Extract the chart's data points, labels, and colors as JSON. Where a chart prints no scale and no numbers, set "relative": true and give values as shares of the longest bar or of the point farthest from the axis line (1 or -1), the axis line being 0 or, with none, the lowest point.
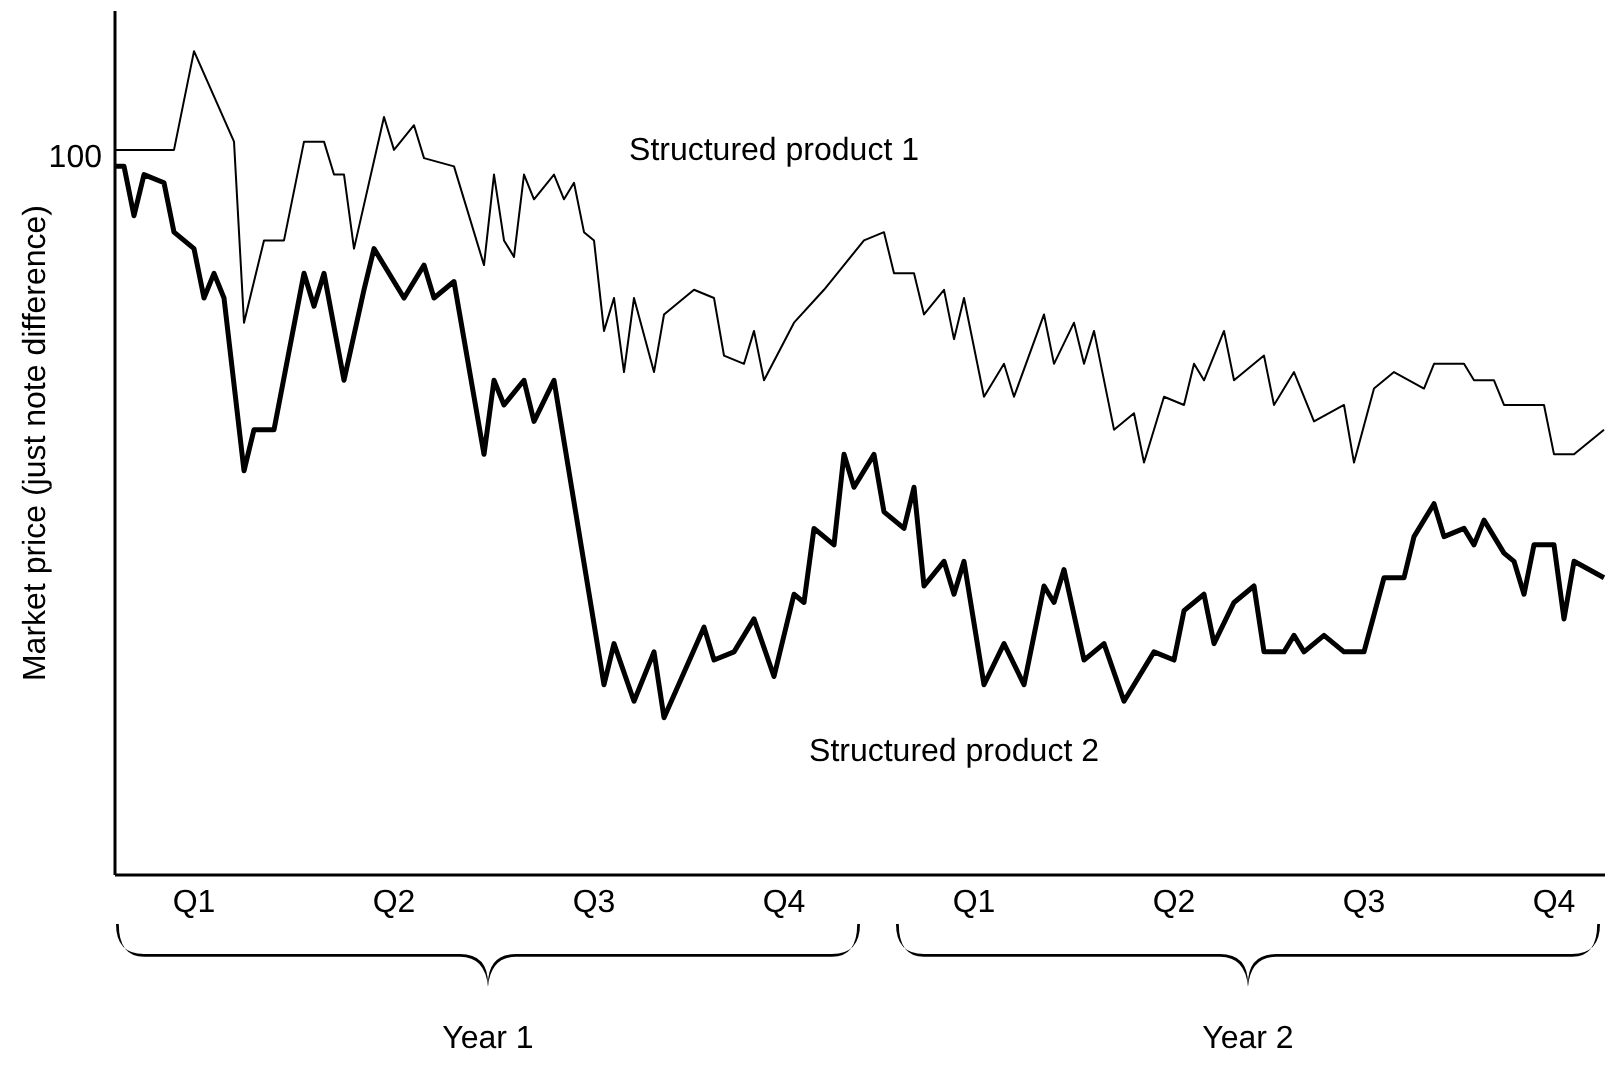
{
  "chart_data": {
    "type": "line",
    "relative": true,
    "ylabel": "Market price (just note difference)",
    "categories": [
      null,
      null,
      null,
      null,
      null,
      null,
      null,
      null,
      null,
      null,
      null,
      null,
      null,
      null,
      null,
      null,
      null,
      null,
      null,
      null,
      null,
      null,
      null,
      null,
      null,
      null,
      null,
      null,
      null,
      null,
      null,
      null,
      null,
      null,
      null,
      null,
      null,
      null,
      null,
      null,
      null,
      null,
      null,
      null,
      null,
      null,
      null,
      null,
      null,
      null,
      null,
      null,
      null,
      null,
      null,
      null,
      null,
      null,
      null,
      null,
      null,
      null,
      null,
      null,
      null,
      null,
      null,
      null,
      null,
      null,
      null,
      null,
      null,
      null,
      null,
      null,
      null,
      null,
      null,
      null,
      null,
      null,
      null,
      null,
      null,
      null,
      null,
      null,
      null,
      null,
      null,
      null,
      null,
      null,
      null,
      null,
      null,
      null,
      null,
      null,
      null,
      null,
      null,
      null,
      null,
      null,
      null,
      null,
      null,
      null,
      null,
      null,
      null,
      null,
      null,
      null,
      null,
      null,
      null,
      null,
      null,
      null,
      null,
      null,
      null,
      null,
      null,
      null,
      null,
      null,
      null,
      null,
      null,
      null,
      null,
      null,
      null,
      null,
      null,
      null,
      null,
      null,
      null,
      null,
      null,
      null,
      null,
      null,
      null,
      null
    ],
    "annotations": [
      "100",
      "Q1",
      "Q2",
      "Q3",
      "Q4",
      "Q1",
      "Q2",
      "Q3",
      "Q4",
      "Year 1",
      "Year 2"
    ],
    "series": [
      {
        "name": "Structured product 1",
        "color": "#000000",
        "values": [
          0.88,
          null,
          null,
          null,
          null,
          null,
          0.88,
          null,
          1.0,
          null,
          null,
          null,
          0.89,
          0.67,
          null,
          0.77,
          null,
          0.77,
          null,
          0.89,
          null,
          0.89,
          0.85,
          0.85,
          0.76,
          null,
          null,
          0.92,
          0.88,
          null,
          0.91,
          0.87,
          null,
          null,
          0.86,
          null,
          null,
          0.74,
          0.85,
          0.77,
          0.75,
          0.85,
          0.82,
          null,
          0.85,
          0.82,
          0.84,
          0.78,
          0.77,
          0.66,
          0.7,
          0.61,
          0.7,
          null,
          0.61,
          0.68,
          null,
          null,
          0.71,
          null,
          0.7,
          0.63,
          null,
          0.62,
          0.66,
          0.6,
          null,
          null,
          0.67,
          null,
          null,
          0.71,
          null,
          null,
          null,
          0.77,
          null,
          0.78,
          0.73,
          null,
          0.73,
          0.68,
          null,
          0.71,
          0.65,
          0.7,
          null,
          0.58,
          null,
          0.62,
          0.58,
          null,
          null,
          0.68,
          0.62,
          null,
          0.67,
          0.62,
          0.66,
          null,
          0.54,
          null,
          0.56,
          0.5,
          null,
          0.58,
          null,
          0.57,
          0.62,
          0.6,
          null,
          0.66,
          0.6,
          null,
          null,
          0.63,
          0.57,
          null,
          0.61,
          null,
          0.55,
          null,
          null,
          0.57,
          0.5,
          null,
          0.59,
          null,
          0.61,
          null,
          null,
          0.59,
          0.62,
          null,
          null,
          0.62,
          0.6,
          null,
          0.6,
          0.57,
          null,
          null,
          null,
          0.57,
          0.51,
          null,
          0.51,
          null,
          null,
          0.54
        ]
      },
      {
        "name": "Structured product 2",
        "color": "#000000",
        "values": [
          0.86,
          0.86,
          0.8,
          0.85,
          null,
          0.84,
          0.78,
          null,
          0.76,
          0.7,
          0.73,
          0.7,
          null,
          0.49,
          0.54,
          null,
          0.54,
          null,
          null,
          0.73,
          0.69,
          0.73,
          null,
          0.6,
          null,
          0.71,
          0.76,
          null,
          null,
          0.7,
          null,
          0.74,
          0.7,
          null,
          0.72,
          null,
          null,
          0.51,
          0.6,
          0.57,
          null,
          0.6,
          0.55,
          null,
          0.6,
          null,
          null,
          null,
          null,
          0.23,
          0.28,
          null,
          0.21,
          null,
          0.27,
          0.19,
          null,
          null,
          null,
          0.3,
          0.26,
          null,
          0.27,
          null,
          0.31,
          null,
          0.24,
          null,
          0.34,
          0.33,
          0.42,
          null,
          0.4,
          0.51,
          0.47,
          null,
          0.51,
          0.44,
          null,
          0.42,
          0.47,
          0.35,
          null,
          0.38,
          0.34,
          0.38,
          null,
          0.23,
          null,
          0.28,
          null,
          0.23,
          null,
          0.35,
          0.33,
          0.37,
          null,
          0.26,
          null,
          0.28,
          null,
          0.21,
          null,
          null,
          0.27,
          null,
          0.26,
          0.32,
          null,
          0.34,
          0.28,
          null,
          0.33,
          null,
          0.35,
          0.27,
          null,
          0.27,
          0.29,
          0.27,
          null,
          0.29,
          null,
          0.27,
          null,
          0.27,
          null,
          0.36,
          null,
          0.36,
          0.41,
          null,
          0.45,
          0.41,
          null,
          0.42,
          0.4,
          0.43,
          null,
          0.39,
          0.38,
          0.34,
          0.4,
          null,
          0.4,
          0.31,
          0.38,
          null,
          null,
          0.36
        ]
      }
    ]
  }
}
